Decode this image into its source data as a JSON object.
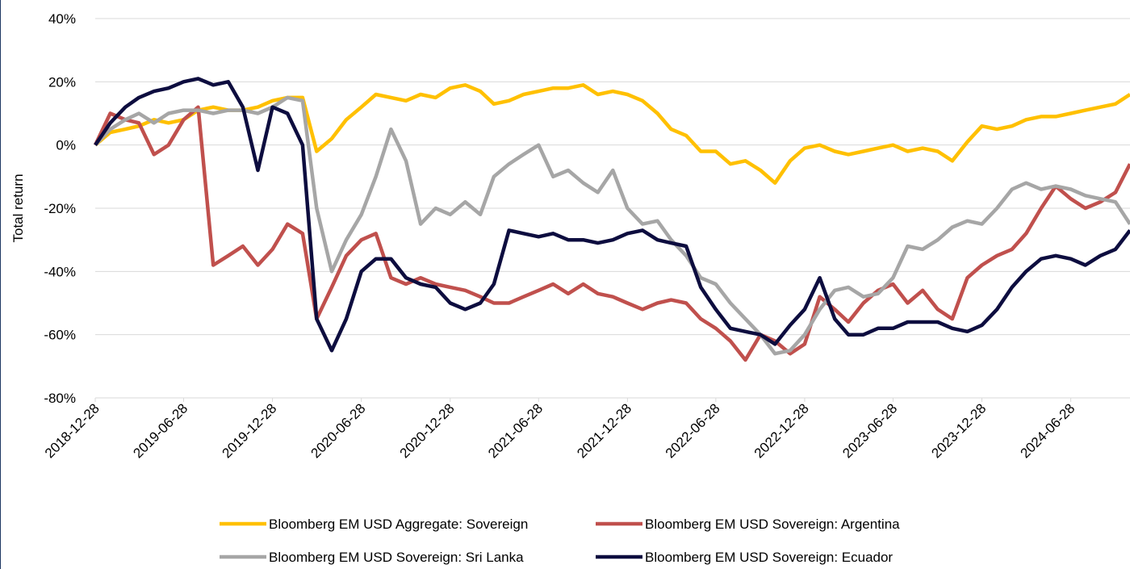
{
  "chart_data": {
    "type": "line",
    "y_label": "Total return",
    "x": [
      "2018-12-28",
      "2019-01-28",
      "2019-02-28",
      "2019-03-28",
      "2019-04-28",
      "2019-05-28",
      "2019-06-28",
      "2019-07-28",
      "2019-08-28",
      "2019-09-28",
      "2019-10-28",
      "2019-11-28",
      "2019-12-28",
      "2020-01-28",
      "2020-02-28",
      "2020-03-28",
      "2020-04-28",
      "2020-05-28",
      "2020-06-28",
      "2020-07-28",
      "2020-08-28",
      "2020-09-28",
      "2020-10-28",
      "2020-11-28",
      "2020-12-28",
      "2021-01-28",
      "2021-02-28",
      "2021-03-28",
      "2021-04-28",
      "2021-05-28",
      "2021-06-28",
      "2021-07-28",
      "2021-08-28",
      "2021-09-28",
      "2021-10-28",
      "2021-11-28",
      "2021-12-28",
      "2022-01-28",
      "2022-02-28",
      "2022-03-28",
      "2022-04-28",
      "2022-05-28",
      "2022-06-28",
      "2022-07-28",
      "2022-08-28",
      "2022-09-28",
      "2022-10-28",
      "2022-11-28",
      "2022-12-28",
      "2023-01-28",
      "2023-02-28",
      "2023-03-28",
      "2023-04-28",
      "2023-05-28",
      "2023-06-28",
      "2023-07-28",
      "2023-08-28",
      "2023-09-28",
      "2023-10-28",
      "2023-11-28",
      "2023-12-28",
      "2024-01-28",
      "2024-02-28",
      "2024-03-28",
      "2024-04-28",
      "2024-05-28",
      "2024-06-28",
      "2024-07-28",
      "2024-08-28",
      "2024-09-28",
      "2024-10-28"
    ],
    "series": [
      {
        "name": "Bloomberg EM USD Aggregate: Sovereign",
        "color": "#ffc000",
        "values": [
          0,
          4,
          5,
          6,
          8,
          7,
          8,
          11,
          12,
          11,
          11,
          12,
          14,
          15,
          15,
          -2,
          2,
          8,
          12,
          16,
          15,
          14,
          16,
          15,
          18,
          19,
          17,
          13,
          14,
          16,
          17,
          18,
          18,
          19,
          16,
          17,
          16,
          14,
          10,
          5,
          3,
          -2,
          -2,
          -6,
          -5,
          -8,
          -12,
          -5,
          -1,
          0,
          -2,
          -3,
          -2,
          -1,
          0,
          -2,
          -1,
          -2,
          -5,
          1,
          6,
          5,
          6,
          8,
          9,
          9,
          10,
          11,
          12,
          13,
          16
        ]
      },
      {
        "name": "Bloomberg EM USD Sovereign: Argentina",
        "color": "#c0504d",
        "values": [
          0,
          10,
          8,
          7,
          -3,
          0,
          8,
          12,
          -38,
          -35,
          -32,
          -38,
          -33,
          -25,
          -28,
          -55,
          -45,
          -35,
          -30,
          -28,
          -42,
          -44,
          -42,
          -44,
          -45,
          -46,
          -48,
          -50,
          -50,
          -48,
          -46,
          -44,
          -47,
          -44,
          -47,
          -48,
          -50,
          -52,
          -50,
          -49,
          -50,
          -55,
          -58,
          -62,
          -68,
          -60,
          -62,
          -66,
          -63,
          -48,
          -52,
          -56,
          -50,
          -46,
          -44,
          -50,
          -46,
          -52,
          -55,
          -42,
          -38,
          -35,
          -33,
          -28,
          -20,
          -13,
          -17,
          -20,
          -18,
          -15,
          -6
        ]
      },
      {
        "name": "Bloomberg EM USD Sovereign: Sri Lanka",
        "color": "#a6a6a6",
        "values": [
          0,
          5,
          8,
          10,
          7,
          10,
          11,
          11,
          10,
          11,
          11,
          10,
          12,
          15,
          14,
          -20,
          -40,
          -30,
          -22,
          -10,
          5,
          -5,
          -25,
          -20,
          -22,
          -18,
          -22,
          -10,
          -6,
          -3,
          0,
          -10,
          -8,
          -12,
          -15,
          -8,
          -20,
          -25,
          -24,
          -30,
          -35,
          -42,
          -44,
          -50,
          -55,
          -60,
          -66,
          -65,
          -60,
          -52,
          -46,
          -45,
          -48,
          -47,
          -42,
          -32,
          -33,
          -30,
          -26,
          -24,
          -25,
          -20,
          -14,
          -12,
          -14,
          -13,
          -14,
          -16,
          -17,
          -18,
          -25
        ]
      },
      {
        "name": "Bloomberg EM USD Sovereign: Ecuador",
        "color": "#0d0d3f",
        "values": [
          0,
          7,
          12,
          15,
          17,
          18,
          20,
          21,
          19,
          20,
          12,
          -8,
          12,
          10,
          0,
          -55,
          -65,
          -55,
          -40,
          -36,
          -36,
          -42,
          -44,
          -45,
          -50,
          -52,
          -50,
          -44,
          -27,
          -28,
          -29,
          -28,
          -30,
          -30,
          -31,
          -30,
          -28,
          -27,
          -30,
          -31,
          -32,
          -45,
          -52,
          -58,
          -59,
          -60,
          -63,
          -57,
          -52,
          -42,
          -55,
          -60,
          -60,
          -58,
          -58,
          -56,
          -56,
          -56,
          -58,
          -59,
          -57,
          -52,
          -45,
          -40,
          -36,
          -35,
          -36,
          -38,
          -35,
          -33,
          -27
        ]
      }
    ],
    "xlim": [
      "2018-12-28",
      "2024-10-28"
    ],
    "xticks": [
      "2018-12-28",
      "2019-06-28",
      "2019-12-28",
      "2020-06-28",
      "2020-12-28",
      "2021-06-28",
      "2021-12-28",
      "2022-06-28",
      "2022-12-28",
      "2023-06-28",
      "2023-12-28",
      "2024-06-28"
    ],
    "ylim": [
      -80,
      40
    ],
    "yticks": [
      {
        "value": -80,
        "label": "-80%"
      },
      {
        "value": -60,
        "label": "-60%"
      },
      {
        "value": -40,
        "label": "-40%"
      },
      {
        "value": -20,
        "label": "-20%"
      },
      {
        "value": 0,
        "label": "0%"
      },
      {
        "value": 20,
        "label": "20%"
      },
      {
        "value": 40,
        "label": "40%"
      }
    ],
    "grid": true
  }
}
